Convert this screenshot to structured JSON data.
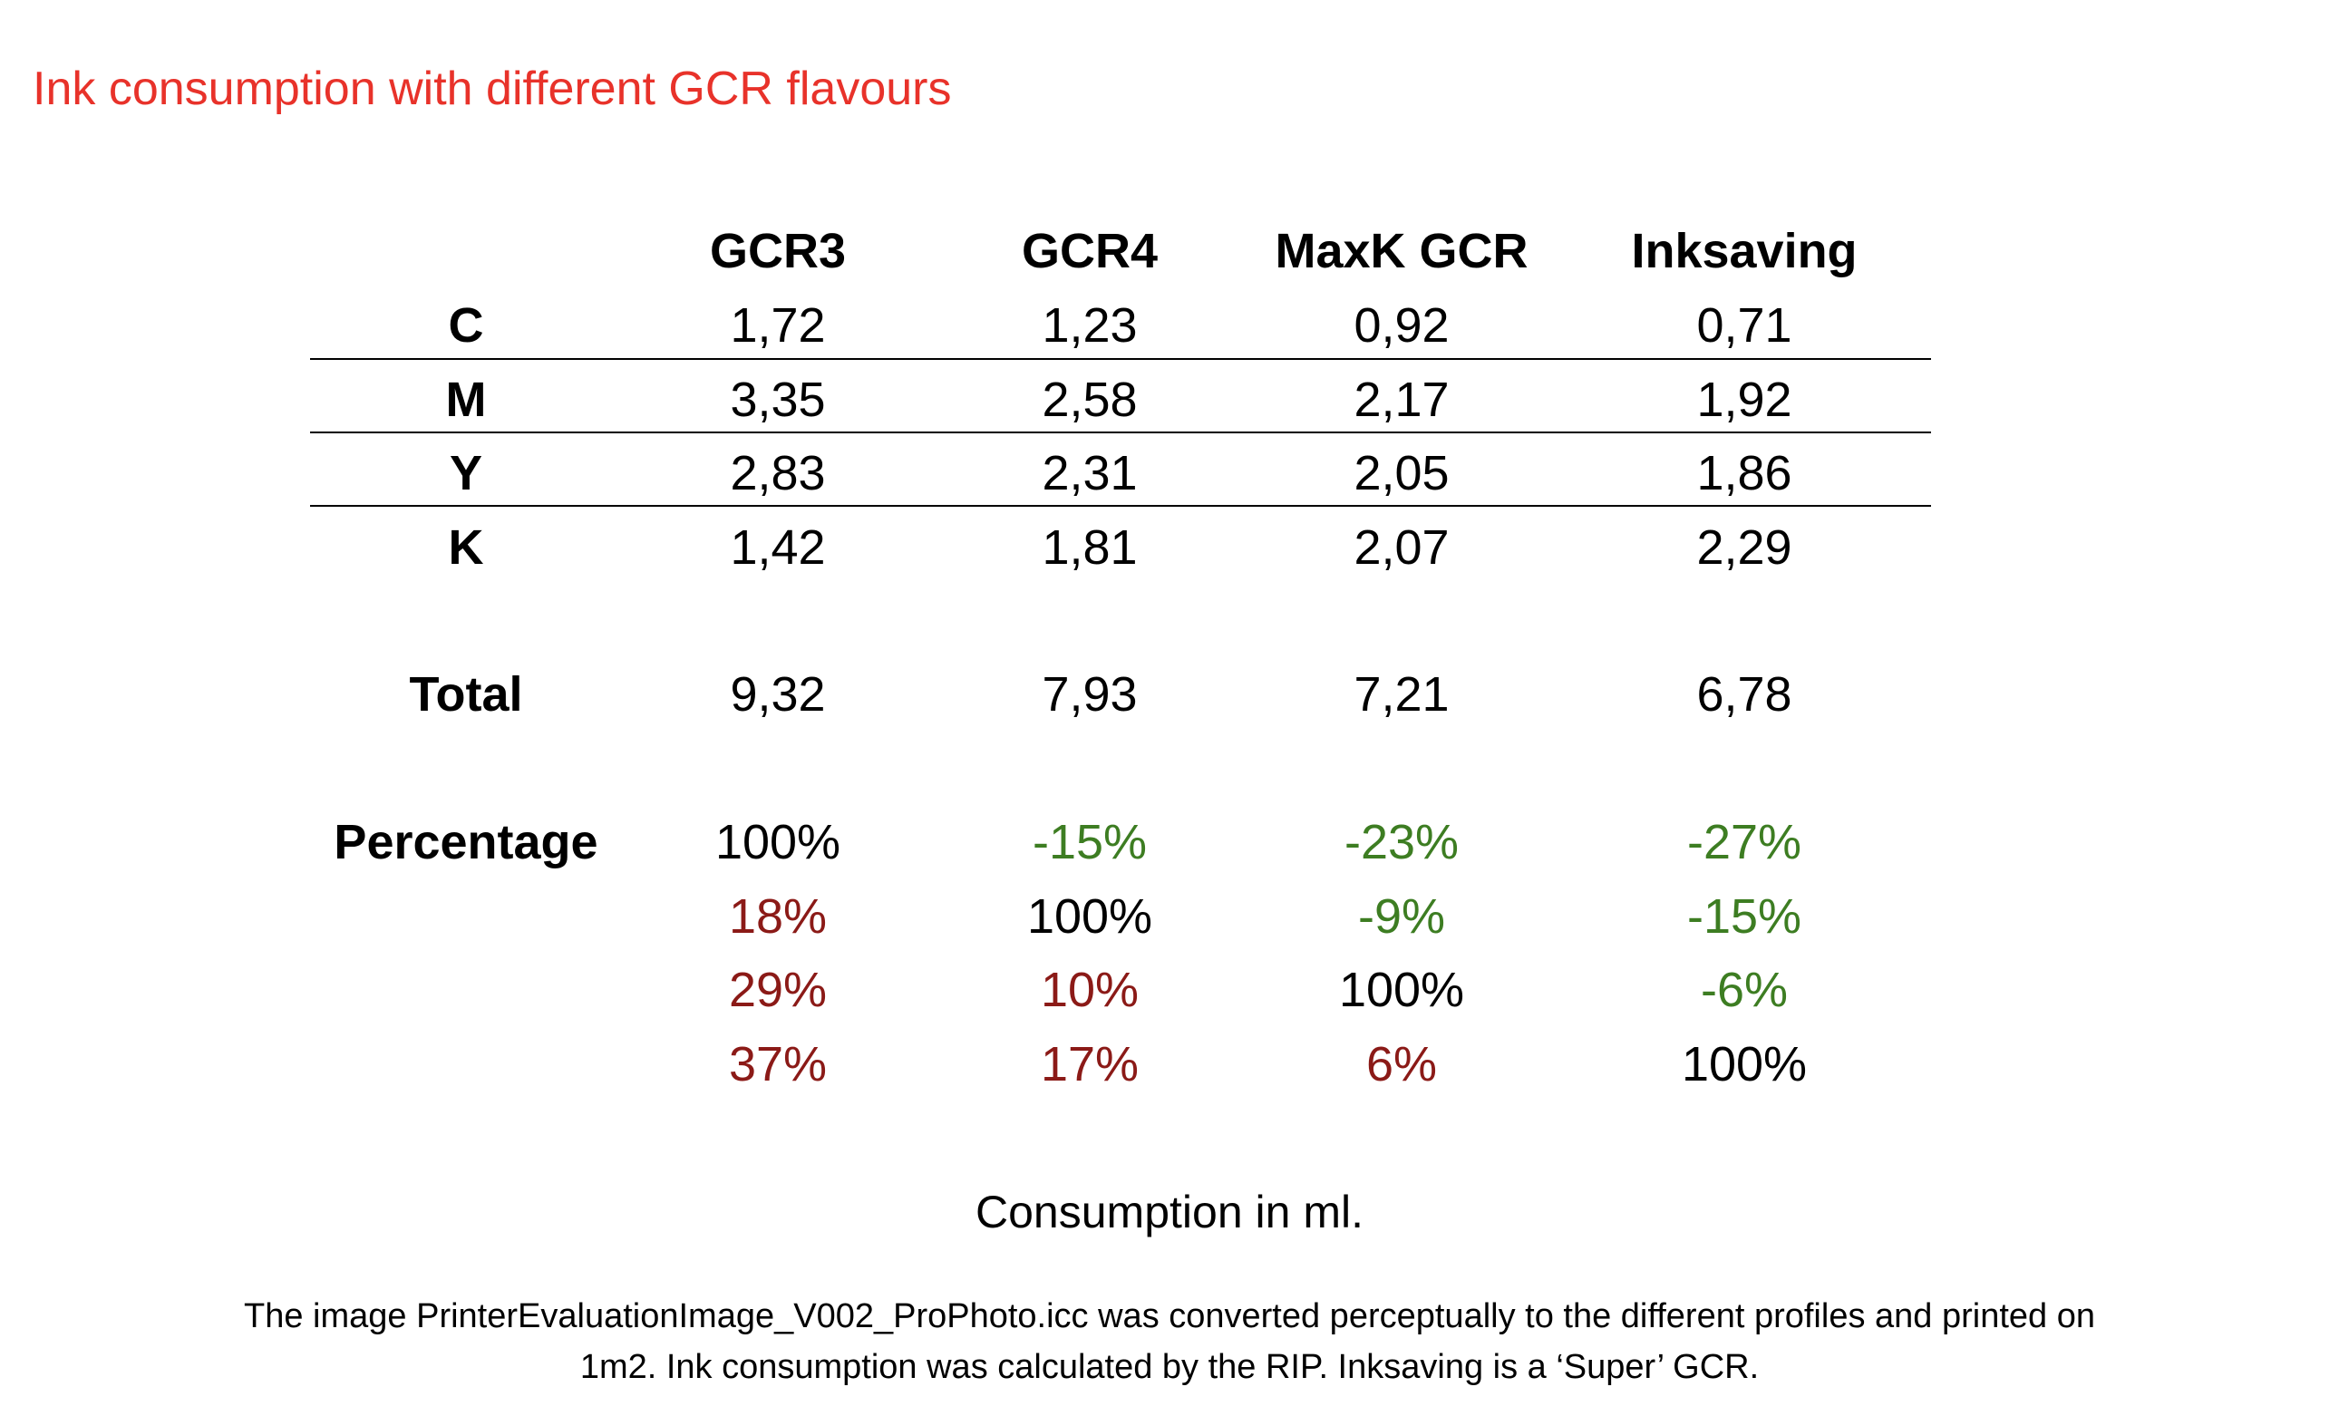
{
  "title": "Ink consumption with different GCR flavours",
  "colors": {
    "title": "#e8322a",
    "neutral": "#000000",
    "saving": "#3d7d22",
    "increase": "#8b1a17"
  },
  "table": {
    "columns": [
      "GCR3",
      "GCR4",
      "MaxK GCR",
      "Inksaving"
    ],
    "ink_rows": [
      {
        "label": "C",
        "values": [
          "1,72",
          "1,23",
          "0,92",
          "0,71"
        ]
      },
      {
        "label": "M",
        "values": [
          "3,35",
          "2,58",
          "2,17",
          "1,92"
        ]
      },
      {
        "label": "Y",
        "values": [
          "2,83",
          "2,31",
          "2,05",
          "1,86"
        ]
      },
      {
        "label": "K",
        "values": [
          "1,42",
          "1,81",
          "2,07",
          "2,29"
        ]
      }
    ],
    "total": {
      "label": "Total",
      "values": [
        "9,32",
        "7,93",
        "7,21",
        "6,78"
      ]
    },
    "percentage": {
      "label": "Percentage",
      "rows": [
        [
          {
            "text": "100%",
            "tone": "neutral"
          },
          {
            "text": "-15%",
            "tone": "saving"
          },
          {
            "text": "-23%",
            "tone": "saving"
          },
          {
            "text": "-27%",
            "tone": "saving"
          }
        ],
        [
          {
            "text": "18%",
            "tone": "increase"
          },
          {
            "text": "100%",
            "tone": "neutral"
          },
          {
            "text": "-9%",
            "tone": "saving"
          },
          {
            "text": "-15%",
            "tone": "saving"
          }
        ],
        [
          {
            "text": "29%",
            "tone": "increase"
          },
          {
            "text": "10%",
            "tone": "increase"
          },
          {
            "text": "100%",
            "tone": "neutral"
          },
          {
            "text": "-6%",
            "tone": "saving"
          }
        ],
        [
          {
            "text": "37%",
            "tone": "increase"
          },
          {
            "text": "17%",
            "tone": "increase"
          },
          {
            "text": "6%",
            "tone": "increase"
          },
          {
            "text": "100%",
            "tone": "neutral"
          }
        ]
      ]
    }
  },
  "caption": "Consumption in ml.",
  "note": {
    "line1": "The image PrinterEvaluationImage_V002_ProPhoto.icc was converted perceptually to the different profiles and printed on",
    "line2": "1m2. Ink consumption was calculated by the RIP. Inksaving is a ‘Super’ GCR."
  }
}
